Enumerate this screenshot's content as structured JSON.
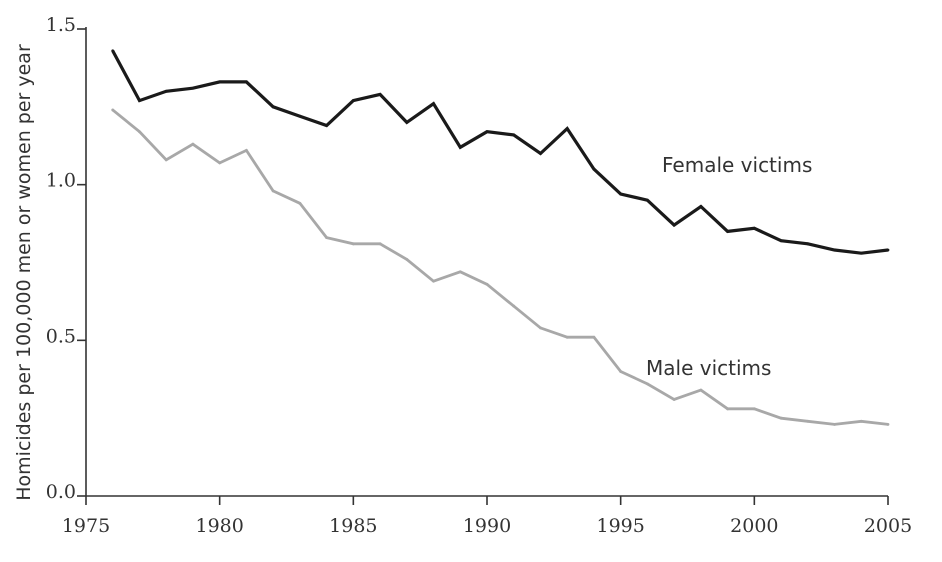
{
  "chart_data": {
    "type": "line",
    "title": "",
    "xlabel": "",
    "ylabel": "Homicides per 100,000 men or women per year",
    "xlim": [
      1975,
      2005
    ],
    "ylim": [
      0.0,
      1.5
    ],
    "x_ticks": [
      "1975",
      "1980",
      "1985",
      "1990",
      "1995",
      "2000",
      "2005"
    ],
    "y_ticks": [
      "0.0",
      "0.5",
      "1.0",
      "1.5"
    ],
    "grid": false,
    "x": [
      1976,
      1977,
      1978,
      1979,
      1980,
      1981,
      1982,
      1983,
      1984,
      1985,
      1986,
      1987,
      1988,
      1989,
      1990,
      1991,
      1992,
      1993,
      1994,
      1995,
      1996,
      1997,
      1998,
      1999,
      2000,
      2001,
      2002,
      2003,
      2004,
      2005
    ],
    "series": [
      {
        "name": "Female victims",
        "color": "#1a1a1a",
        "values": [
          1.43,
          1.27,
          1.3,
          1.31,
          1.33,
          1.33,
          1.25,
          1.22,
          1.19,
          1.27,
          1.29,
          1.2,
          1.26,
          1.12,
          1.17,
          1.16,
          1.1,
          1.18,
          1.05,
          0.97,
          0.95,
          0.87,
          0.93,
          0.85,
          0.86,
          0.82,
          0.81,
          0.79,
          0.78,
          0.79
        ]
      },
      {
        "name": "Male victims",
        "color": "#a8a8a8",
        "values": [
          1.24,
          1.17,
          1.08,
          1.13,
          1.07,
          1.11,
          0.98,
          0.94,
          0.83,
          0.81,
          0.81,
          0.76,
          0.69,
          0.72,
          0.68,
          0.61,
          0.54,
          0.51,
          0.51,
          0.4,
          0.36,
          0.31,
          0.34,
          0.28,
          0.28,
          0.25,
          0.24,
          0.23,
          0.24,
          0.23
        ]
      }
    ],
    "annotations": [
      {
        "text": "Female victims",
        "series": 0
      },
      {
        "text": "Male victims",
        "series": 1
      }
    ]
  }
}
